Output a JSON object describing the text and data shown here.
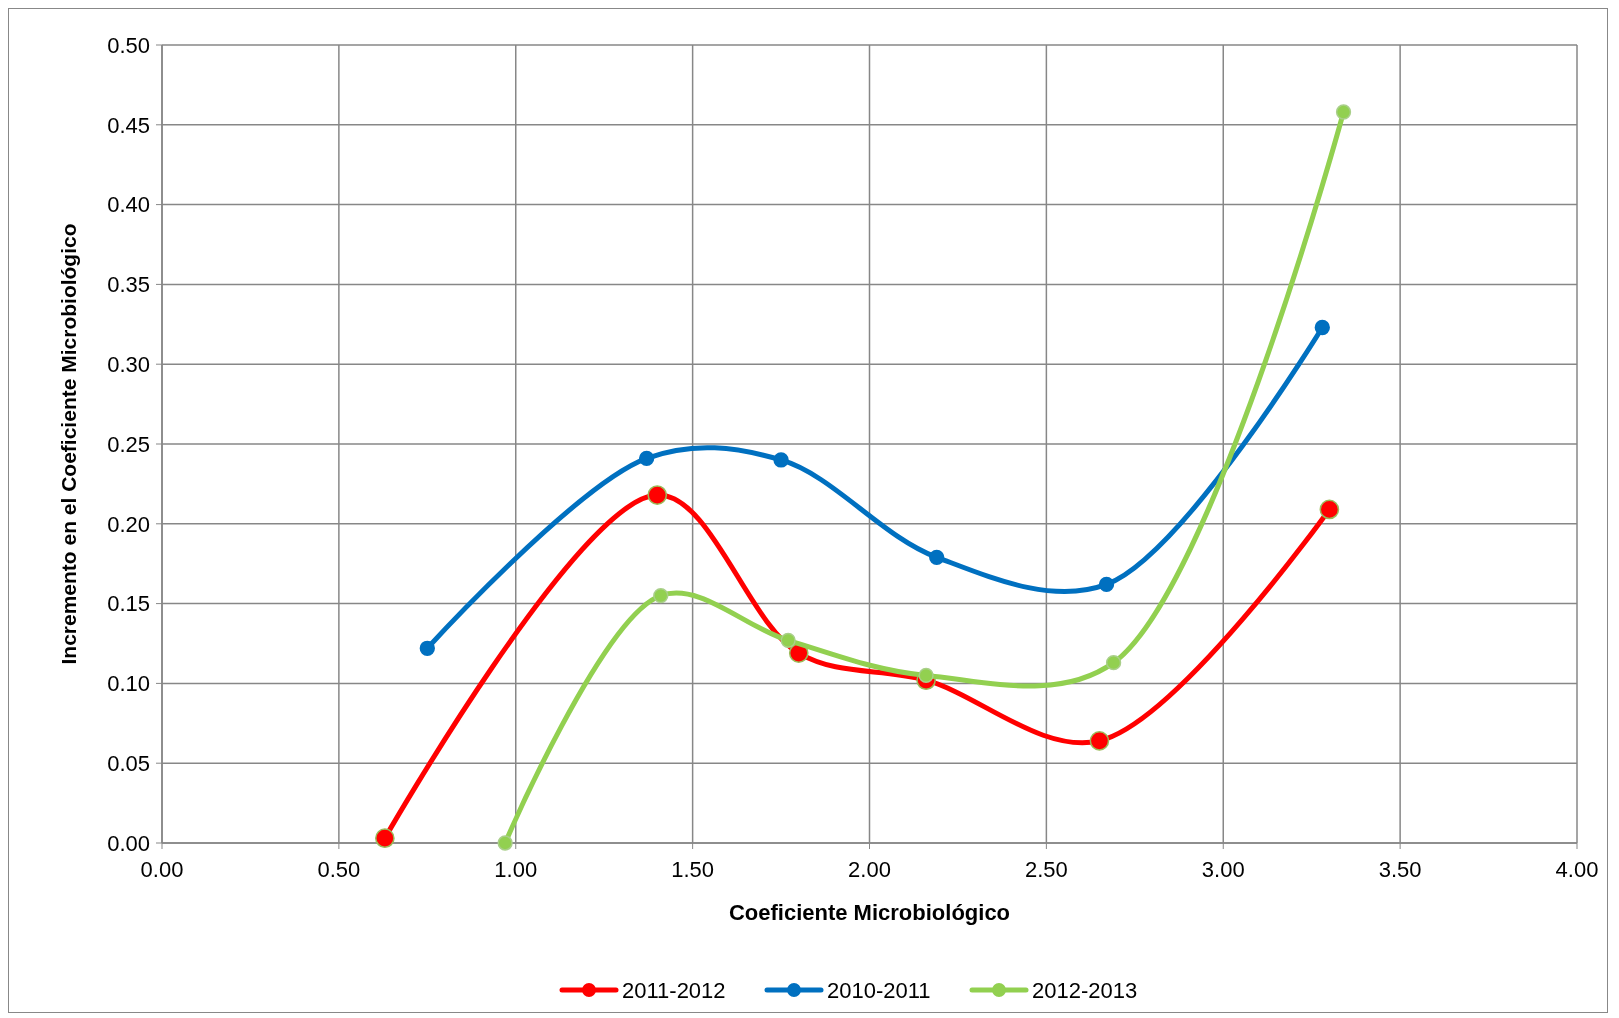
{
  "chart_data": {
    "type": "line",
    "xlabel": "Coeficiente Microbiológico",
    "ylabel": "Incremento en el Coeficiente Microbiológico",
    "xlim": [
      0,
      4
    ],
    "xticks": [
      {
        "value": 0,
        "label": "0.00"
      },
      {
        "value": 0.5,
        "label": "0.50"
      },
      {
        "value": 1,
        "label": "1.00"
      },
      {
        "value": 1.5,
        "label": "1.50"
      },
      {
        "value": 2,
        "label": "2.00"
      },
      {
        "value": 2.5,
        "label": "2.50"
      },
      {
        "value": 3,
        "label": "3.00"
      },
      {
        "value": 3.5,
        "label": "3.50"
      },
      {
        "value": 4,
        "label": "4.00"
      }
    ],
    "ylim": [
      0,
      0.5
    ],
    "yticks": [
      {
        "value": 0,
        "label": "0.00"
      },
      {
        "value": 0.05,
        "label": "0.05"
      },
      {
        "value": 0.1,
        "label": "0.10"
      },
      {
        "value": 0.15,
        "label": "0.15"
      },
      {
        "value": 0.2,
        "label": "0.20"
      },
      {
        "value": 0.25,
        "label": "0.25"
      },
      {
        "value": 0.3,
        "label": "0.30"
      },
      {
        "value": 0.35,
        "label": "0.35"
      },
      {
        "value": 0.4,
        "label": "0.40"
      },
      {
        "value": 0.45,
        "label": "0.45"
      },
      {
        "value": 0.5,
        "label": "0.50"
      }
    ],
    "grid": true,
    "legend": "bottom",
    "marker": "circle",
    "line_style": "solid",
    "series": [
      {
        "name": "2011-2012",
        "color": "#ff0000",
        "x": [
          0.63,
          1.4,
          1.8,
          2.16,
          2.65,
          3.3
        ],
        "values": [
          0.003,
          0.218,
          0.119,
          0.102,
          0.064,
          0.209
        ]
      },
      {
        "name": "2010-2011",
        "color": "#0070c0",
        "x": [
          0.75,
          1.37,
          1.75,
          2.19,
          2.67,
          3.28
        ],
        "values": [
          0.122,
          0.241,
          0.24,
          0.179,
          0.162,
          0.323
        ]
      },
      {
        "name": "2012-2013",
        "color": "#92d050",
        "x": [
          0.97,
          1.41,
          1.77,
          2.16,
          2.69,
          3.34
        ],
        "values": [
          0,
          0.155,
          0.127,
          0.105,
          0.113,
          0.458
        ]
      }
    ]
  }
}
